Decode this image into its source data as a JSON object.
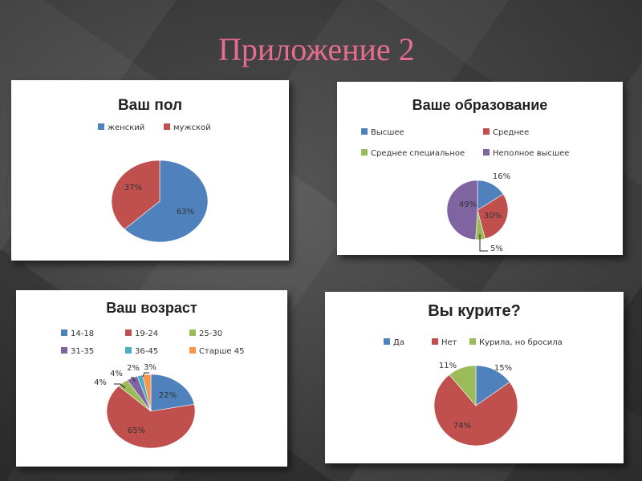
{
  "slide": {
    "title": "Приложение 2"
  },
  "chart_data": [
    {
      "type": "pie",
      "title": "Ваш пол",
      "categories": [
        "женский",
        "мужской"
      ],
      "values": [
        63,
        37
      ],
      "labels": [
        "63%",
        "37%"
      ],
      "colors": [
        "#4f81bd",
        "#c0504d"
      ],
      "legend": "top"
    },
    {
      "type": "pie",
      "title": "Ваше образование",
      "categories": [
        "Высшее",
        "Среднее",
        "Среднее специальное",
        "Неполное высшее"
      ],
      "values": [
        16,
        30,
        5,
        49
      ],
      "labels": [
        "16%",
        "30%",
        "5%",
        "49%"
      ],
      "colors": [
        "#4f81bd",
        "#c0504d",
        "#9bbb59",
        "#8064a2"
      ],
      "legend": "top"
    },
    {
      "type": "pie",
      "title": "Ваш возраст",
      "categories": [
        "14-18",
        "19-24",
        "25-30",
        "31-35",
        "36-45",
        "Старше 45"
      ],
      "values": [
        22,
        65,
        4,
        4,
        2,
        3
      ],
      "labels": [
        "22%",
        "65%",
        "4%",
        "4%",
        "2%",
        "3%"
      ],
      "colors": [
        "#4f81bd",
        "#c0504d",
        "#9bbb59",
        "#8064a2",
        "#4bacc6",
        "#f79646"
      ],
      "legend": "top"
    },
    {
      "type": "pie",
      "title": "Вы курите?",
      "categories": [
        "Да",
        "Нет",
        "Курила, но бросила"
      ],
      "values": [
        15,
        74,
        11
      ],
      "labels": [
        "15%",
        "74%",
        "11%"
      ],
      "colors": [
        "#4f81bd",
        "#c0504d",
        "#9bbb59"
      ],
      "legend": "top"
    }
  ]
}
